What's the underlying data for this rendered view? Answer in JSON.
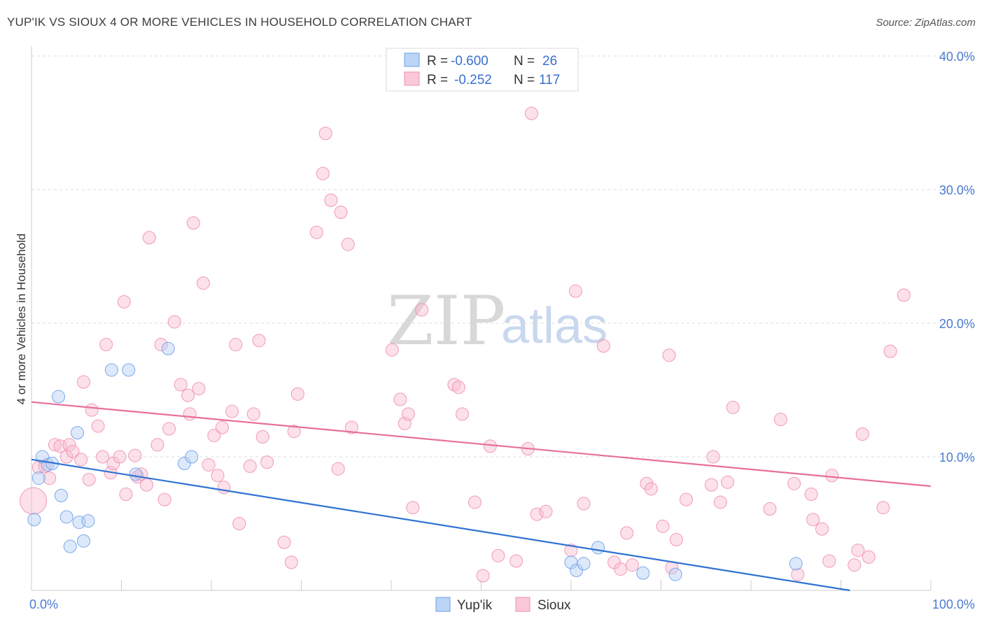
{
  "title": "YUP'IK VS SIOUX 4 OR MORE VEHICLES IN HOUSEHOLD CORRELATION CHART",
  "source": "Source: ZipAtlas.com",
  "legend": {
    "r_label": "R =",
    "n_label": "N =",
    "rows": [
      {
        "name": "Yup'ik",
        "r": "-0.600",
        "n": "26"
      },
      {
        "name": "Sioux",
        "r": "-0.252",
        "n": "117"
      }
    ]
  },
  "watermark": {
    "zip": "ZIP",
    "atlas": "atlas"
  },
  "chart_data": {
    "type": "scatter",
    "title": "YUP'IK VS SIOUX 4 OR MORE VEHICLES IN HOUSEHOLD CORRELATION CHART",
    "xlabel": "",
    "ylabel": "4 or more Vehicles in Household",
    "xlim": [
      0,
      100
    ],
    "ylim": [
      0,
      40
    ],
    "y_ticks": [
      {
        "v": 10,
        "label": "10.0%"
      },
      {
        "v": 20,
        "label": "20.0%"
      },
      {
        "v": 30,
        "label": "30.0%"
      },
      {
        "v": 40,
        "label": "40.0%"
      }
    ],
    "x_ticks": [
      {
        "v": 0,
        "label": "0.0%"
      },
      {
        "v": 100,
        "label": "100.0%"
      }
    ],
    "colors": {
      "yupik": "#6ea0e8",
      "sioux": "#f08fb0",
      "yupik_line": "#2f72d4",
      "sioux_line": "#e8709a"
    },
    "series": [
      {
        "name": "Yup'ik",
        "trend": {
          "x0": 0,
          "y0": 9.8,
          "x1": 91,
          "y1": 0
        },
        "points": [
          [
            0.3,
            5.3
          ],
          [
            0.8,
            8.4
          ],
          [
            1.2,
            10.0
          ],
          [
            1.8,
            9.4
          ],
          [
            2.3,
            9.5
          ],
          [
            3.0,
            14.5
          ],
          [
            3.3,
            7.1
          ],
          [
            3.9,
            5.5
          ],
          [
            4.3,
            3.3
          ],
          [
            5.1,
            11.8
          ],
          [
            5.3,
            5.1
          ],
          [
            5.8,
            3.7
          ],
          [
            6.3,
            5.2
          ],
          [
            8.9,
            16.5
          ],
          [
            10.8,
            16.5
          ],
          [
            11.6,
            8.7
          ],
          [
            15.2,
            18.1
          ],
          [
            17.0,
            9.5
          ],
          [
            17.8,
            10.0
          ],
          [
            60.0,
            2.1
          ],
          [
            60.6,
            1.5
          ],
          [
            61.4,
            2.0
          ],
          [
            63.0,
            3.2
          ],
          [
            68.0,
            1.3
          ],
          [
            71.6,
            1.2
          ],
          [
            85.0,
            2.0
          ]
        ]
      },
      {
        "name": "Sioux",
        "trend": {
          "x0": 0,
          "y0": 14.1,
          "x1": 100,
          "y1": 7.8
        },
        "points": [
          [
            0.2,
            6.7
          ],
          [
            0.8,
            9.2
          ],
          [
            1.5,
            9.3
          ],
          [
            2.0,
            8.4
          ],
          [
            2.6,
            10.9
          ],
          [
            3.2,
            10.8
          ],
          [
            3.9,
            10.0
          ],
          [
            4.2,
            10.9
          ],
          [
            4.6,
            10.4
          ],
          [
            5.5,
            9.8
          ],
          [
            5.8,
            15.6
          ],
          [
            6.4,
            8.3
          ],
          [
            6.7,
            13.5
          ],
          [
            7.4,
            12.3
          ],
          [
            7.9,
            10.0
          ],
          [
            8.3,
            18.4
          ],
          [
            8.8,
            8.8
          ],
          [
            9.1,
            9.5
          ],
          [
            9.8,
            10.0
          ],
          [
            10.3,
            21.6
          ],
          [
            10.5,
            7.2
          ],
          [
            11.5,
            10.1
          ],
          [
            11.8,
            8.5
          ],
          [
            12.2,
            8.7
          ],
          [
            12.8,
            7.9
          ],
          [
            13.1,
            26.4
          ],
          [
            14.0,
            10.9
          ],
          [
            14.4,
            18.4
          ],
          [
            14.8,
            6.8
          ],
          [
            15.3,
            12.1
          ],
          [
            15.9,
            20.1
          ],
          [
            16.6,
            15.4
          ],
          [
            17.4,
            14.6
          ],
          [
            17.6,
            13.2
          ],
          [
            18.0,
            27.5
          ],
          [
            18.6,
            15.1
          ],
          [
            19.1,
            23.0
          ],
          [
            19.7,
            9.4
          ],
          [
            20.3,
            11.6
          ],
          [
            20.7,
            8.6
          ],
          [
            21.2,
            12.2
          ],
          [
            21.4,
            7.7
          ],
          [
            22.3,
            13.4
          ],
          [
            22.7,
            18.4
          ],
          [
            23.1,
            5.0
          ],
          [
            24.3,
            9.3
          ],
          [
            24.7,
            13.2
          ],
          [
            25.3,
            18.7
          ],
          [
            25.7,
            11.5
          ],
          [
            26.2,
            9.6
          ],
          [
            28.1,
            3.6
          ],
          [
            28.9,
            2.1
          ],
          [
            29.2,
            11.9
          ],
          [
            29.6,
            14.7
          ],
          [
            31.7,
            26.8
          ],
          [
            32.4,
            31.2
          ],
          [
            32.7,
            34.2
          ],
          [
            33.3,
            29.2
          ],
          [
            34.1,
            9.1
          ],
          [
            34.4,
            28.3
          ],
          [
            35.2,
            25.9
          ],
          [
            35.6,
            12.2
          ],
          [
            40.1,
            18.0
          ],
          [
            41.0,
            14.3
          ],
          [
            41.5,
            12.5
          ],
          [
            41.9,
            13.2
          ],
          [
            42.4,
            6.2
          ],
          [
            43.4,
            21.0
          ],
          [
            47.0,
            15.4
          ],
          [
            47.5,
            15.2
          ],
          [
            47.9,
            13.2
          ],
          [
            49.3,
            6.6
          ],
          [
            50.2,
            1.1
          ],
          [
            51.0,
            10.8
          ],
          [
            51.9,
            2.6
          ],
          [
            53.9,
            2.2
          ],
          [
            55.2,
            10.6
          ],
          [
            55.6,
            35.7
          ],
          [
            56.2,
            5.7
          ],
          [
            57.2,
            5.9
          ],
          [
            60.0,
            3.0
          ],
          [
            60.5,
            22.4
          ],
          [
            61.4,
            6.5
          ],
          [
            63.6,
            18.3
          ],
          [
            64.8,
            2.1
          ],
          [
            65.5,
            1.6
          ],
          [
            66.2,
            4.3
          ],
          [
            66.8,
            1.9
          ],
          [
            68.4,
            8.0
          ],
          [
            68.9,
            7.6
          ],
          [
            70.2,
            4.8
          ],
          [
            70.9,
            17.6
          ],
          [
            71.2,
            1.7
          ],
          [
            71.7,
            3.8
          ],
          [
            72.8,
            6.8
          ],
          [
            75.6,
            7.9
          ],
          [
            75.8,
            10.0
          ],
          [
            76.6,
            6.6
          ],
          [
            77.4,
            8.1
          ],
          [
            78.0,
            13.7
          ],
          [
            82.1,
            6.1
          ],
          [
            83.3,
            12.8
          ],
          [
            84.8,
            8.0
          ],
          [
            85.2,
            1.2
          ],
          [
            86.7,
            7.2
          ],
          [
            86.9,
            5.3
          ],
          [
            87.9,
            4.6
          ],
          [
            88.7,
            2.2
          ],
          [
            89.0,
            8.6
          ],
          [
            91.5,
            1.9
          ],
          [
            91.9,
            3.0
          ],
          [
            92.4,
            11.7
          ],
          [
            93.1,
            2.5
          ],
          [
            94.7,
            6.2
          ],
          [
            95.5,
            17.9
          ],
          [
            97.0,
            22.1
          ]
        ]
      }
    ]
  }
}
